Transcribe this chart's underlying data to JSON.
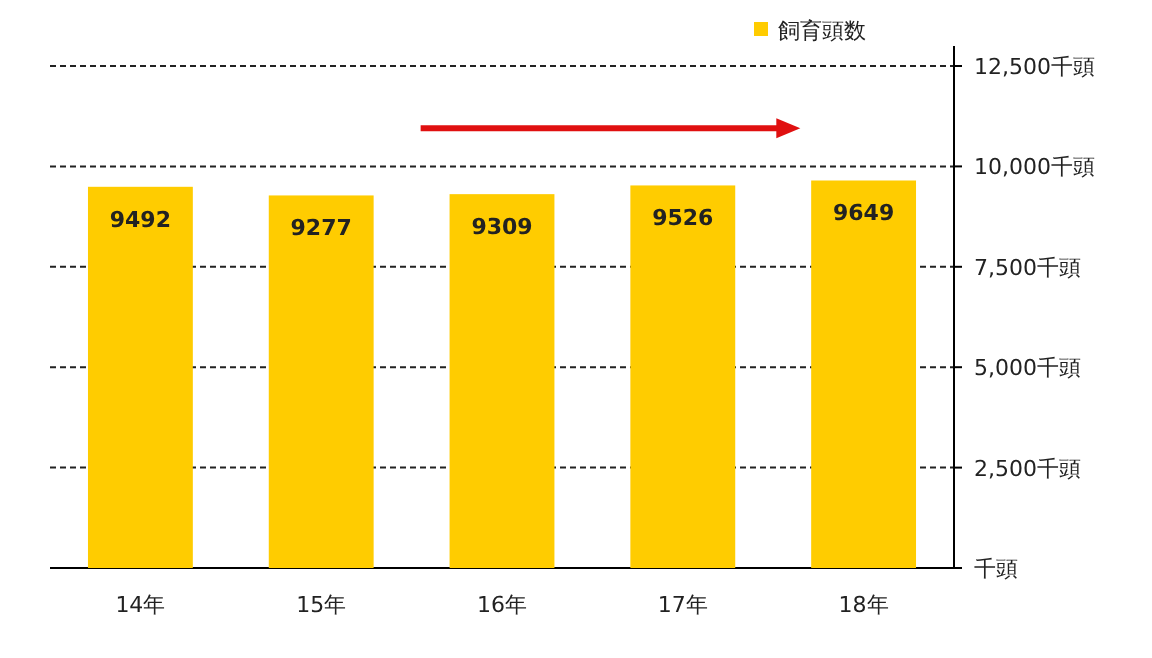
{
  "chart_data": {
    "type": "bar",
    "categories": [
      "14年",
      "15年",
      "16年",
      "17年",
      "18年"
    ],
    "series": [
      {
        "name": "飼育頭数",
        "color": "#ffcc00",
        "values": [
          9492,
          9277,
          9309,
          9526,
          9649
        ]
      }
    ],
    "ylim": [
      0,
      12500
    ],
    "yticks": [
      {
        "value": 0,
        "label": "千頭"
      },
      {
        "value": 2500,
        "label": "2,500千頭"
      },
      {
        "value": 5000,
        "label": "5,000千頭"
      },
      {
        "value": 7500,
        "label": "7,500千頭"
      },
      {
        "value": 10000,
        "label": "10,000千頭"
      },
      {
        "value": 12500,
        "label": "12,500千頭"
      }
    ],
    "grid": "y",
    "legend": "top right",
    "data_labels": true
  }
}
